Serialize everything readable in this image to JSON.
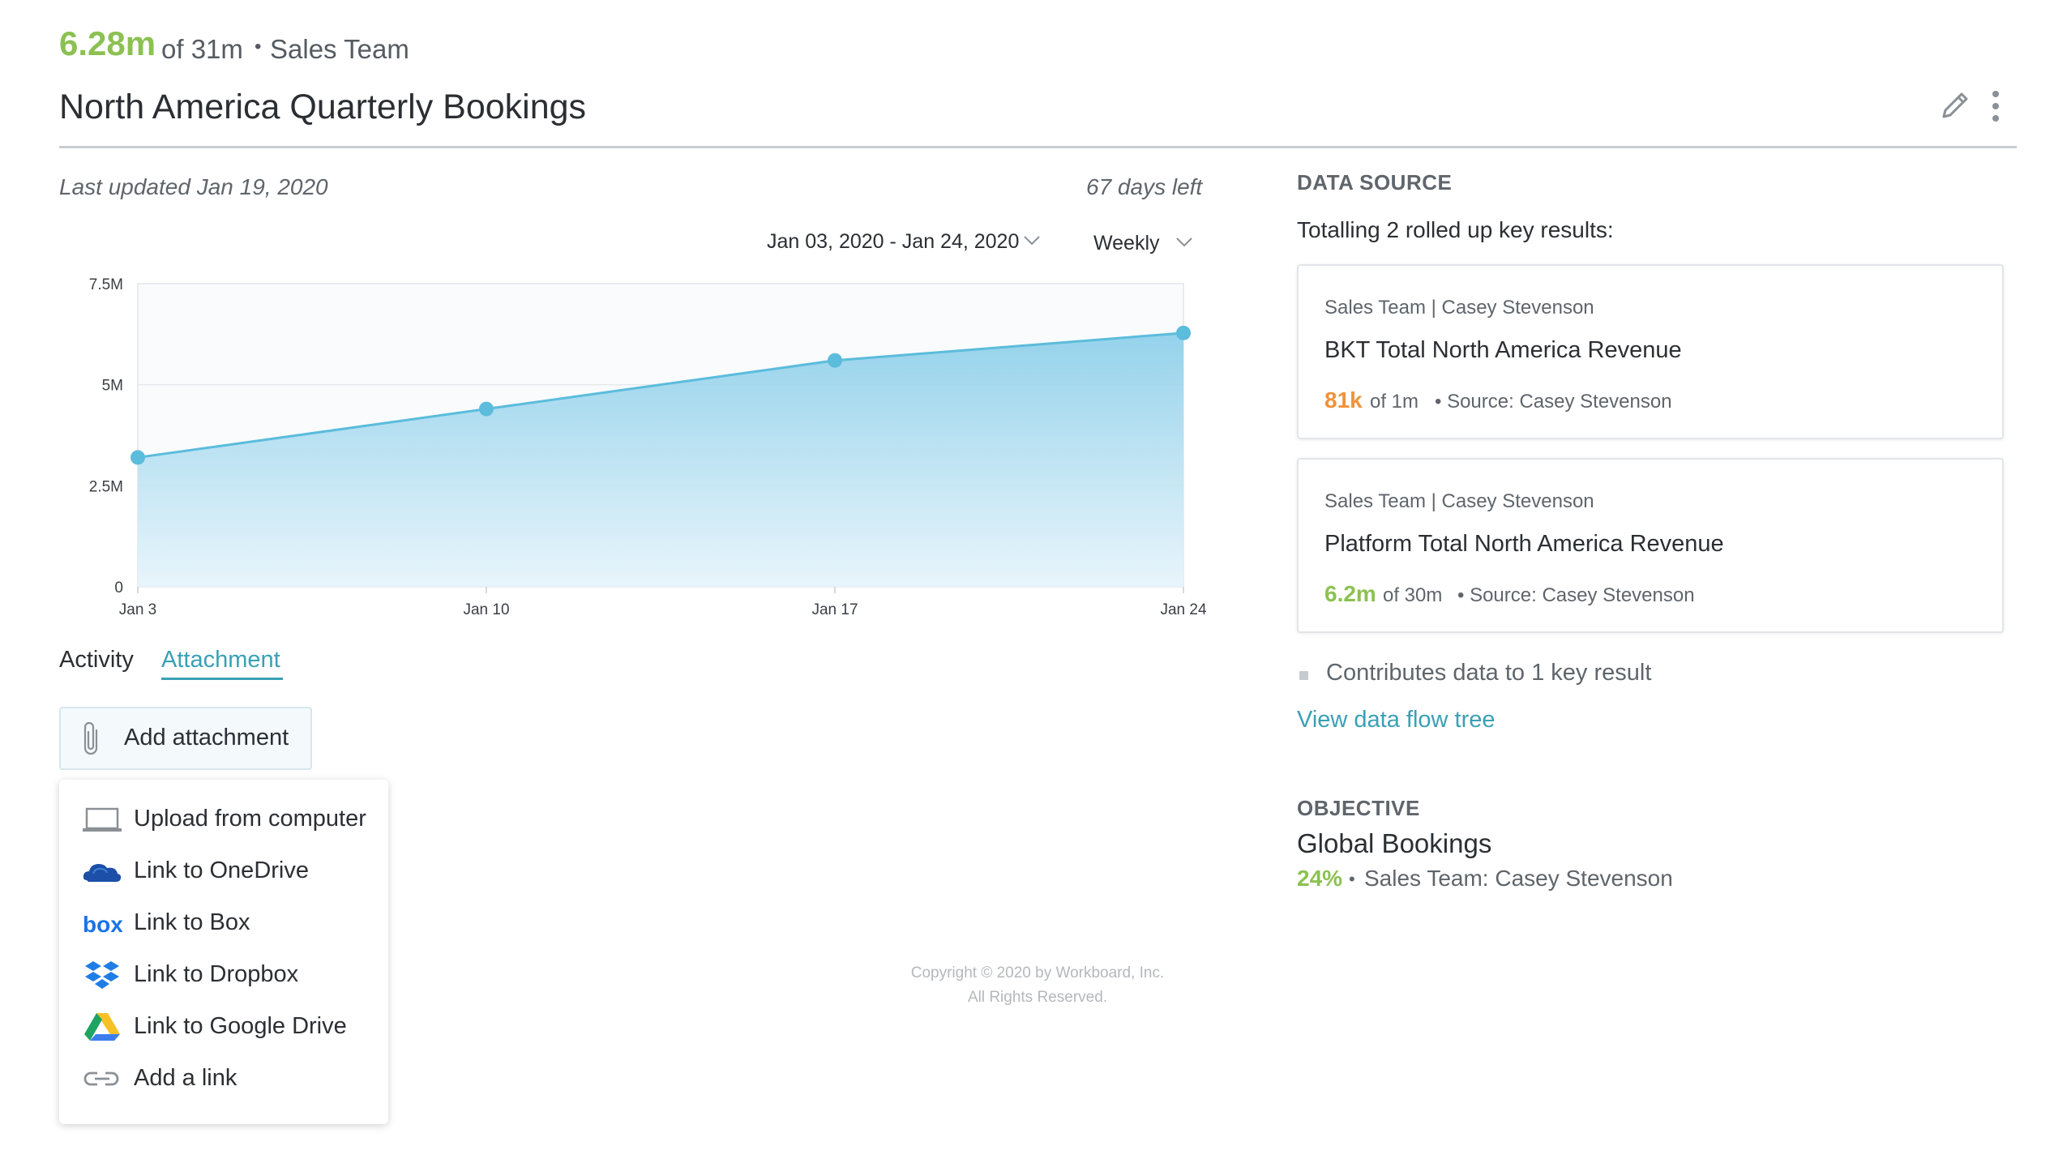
{
  "header": {
    "value": "6.28m",
    "of_target": "of 31m",
    "separator": "•",
    "team": "Sales Team",
    "title": "North America Quarterly Bookings",
    "edit_icon": "pencil-icon",
    "more_icon": "vertical-dots-icon"
  },
  "meta": {
    "last_updated": "Last updated Jan 19, 2020",
    "days_left": "67 days left",
    "date_range": "Jan 03, 2020 - Jan 24, 2020",
    "period": "Weekly"
  },
  "chart_data": {
    "type": "area",
    "x": [
      "Jan 3",
      "Jan 10",
      "Jan 17",
      "Jan 24"
    ],
    "values": [
      3.2,
      4.4,
      5.6,
      6.28
    ],
    "unit": "M",
    "ylim": [
      0,
      7.5
    ],
    "yticks": [
      0,
      2.5,
      5,
      7.5
    ],
    "ytick_labels": [
      "0",
      "2.5M",
      "5M",
      "7.5M"
    ],
    "grid": true,
    "line_color": "#5bbcdc",
    "fill_color": "#a7d9ee"
  },
  "tabs": {
    "activity": "Activity",
    "attachment": "Attachment"
  },
  "attachment": {
    "button_label": "Add attachment",
    "menu": [
      {
        "label": "Upload from computer",
        "icon": "laptop-icon"
      },
      {
        "label": "Link to OneDrive",
        "icon": "onedrive-icon"
      },
      {
        "label": "Link to Box",
        "icon": "box-icon"
      },
      {
        "label": "Link to Dropbox",
        "icon": "dropbox-icon"
      },
      {
        "label": "Link to Google Drive",
        "icon": "google-drive-icon"
      },
      {
        "label": "Add a link",
        "icon": "link-icon"
      }
    ],
    "box_logo_text": "box"
  },
  "footer": {
    "copyright": "Copyright © 2020 by Workboard, Inc.",
    "rights": "All Rights Reserved."
  },
  "data_source": {
    "heading": "DATA SOURCE",
    "total": "Totalling 2 rolled up key results:",
    "cards": [
      {
        "owner": "Sales Team | Casey Stevenson",
        "title": "BKT Total North America Revenue",
        "value": "81k",
        "of": "of 1m",
        "source": "• Source: Casey Stevenson",
        "value_color": "#f0923a"
      },
      {
        "owner": "Sales Team | Casey Stevenson",
        "title": "Platform Total North America Revenue",
        "value": "6.2m",
        "of": "of 30m",
        "source": "• Source: Casey Stevenson",
        "value_color": "#8cc152"
      }
    ],
    "contributes": "Contributes data to 1 key result",
    "view_flow": "View data flow tree"
  },
  "objective": {
    "heading": "OBJECTIVE",
    "title": "Global Bookings",
    "percent": "24%",
    "separator": "•",
    "owner": "Sales Team: Casey Stevenson"
  }
}
